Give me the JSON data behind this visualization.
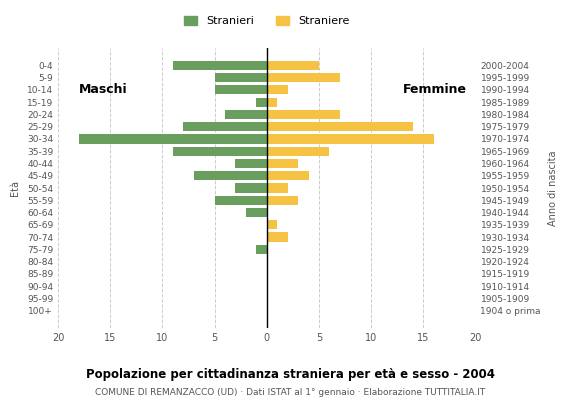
{
  "age_groups": [
    "100+",
    "95-99",
    "90-94",
    "85-89",
    "80-84",
    "75-79",
    "70-74",
    "65-69",
    "60-64",
    "55-59",
    "50-54",
    "45-49",
    "40-44",
    "35-39",
    "30-34",
    "25-29",
    "20-24",
    "15-19",
    "10-14",
    "5-9",
    "0-4"
  ],
  "birth_years": [
    "1904 o prima",
    "1905-1909",
    "1910-1914",
    "1915-1919",
    "1920-1924",
    "1925-1929",
    "1930-1934",
    "1935-1939",
    "1940-1944",
    "1945-1949",
    "1950-1954",
    "1955-1959",
    "1960-1964",
    "1965-1969",
    "1970-1974",
    "1975-1979",
    "1980-1984",
    "1985-1989",
    "1990-1994",
    "1995-1999",
    "2000-2004"
  ],
  "males": [
    0,
    0,
    0,
    0,
    0,
    1,
    0,
    0,
    2,
    5,
    3,
    7,
    3,
    9,
    18,
    8,
    4,
    1,
    5,
    5,
    9
  ],
  "females": [
    0,
    0,
    0,
    0,
    0,
    0,
    2,
    1,
    0,
    3,
    2,
    4,
    3,
    6,
    16,
    14,
    7,
    1,
    2,
    7,
    5
  ],
  "male_color": "#6a9e5e",
  "female_color": "#f5c244",
  "title": "Popolazione per cittadinanza straniera per età e sesso - 2004",
  "subtitle": "COMUNE DI REMANZACCO (UD) · Dati ISTAT al 1° gennaio · Elaborazione TUTTITALIA.IT",
  "legend_male": "Stranieri",
  "legend_female": "Straniere",
  "xlabel_left": "Maschi",
  "xlabel_right": "Femmine",
  "ylabel_left": "Età",
  "ylabel_right": "Anno di nascita",
  "xlim": 20,
  "bg_color": "#ffffff",
  "grid_color": "#cccccc"
}
